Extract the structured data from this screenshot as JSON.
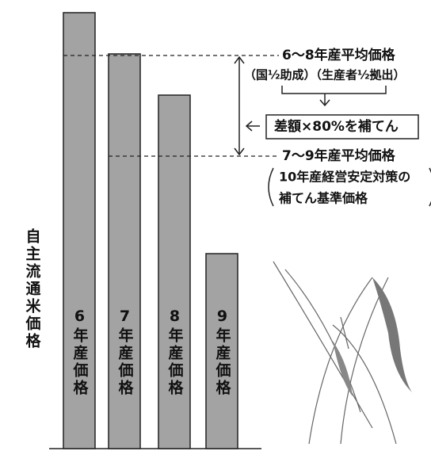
{
  "y_axis_label": "自主流通米価格",
  "bars": [
    {
      "label": "6年産価格"
    },
    {
      "label": "7年産価格"
    },
    {
      "label": "8年産価格"
    },
    {
      "label": "9年産価格"
    }
  ],
  "lines": {
    "avg_6_8": "6〜8年産平均価格",
    "avg_7_9": "7〜9年産平均価格"
  },
  "funding": "（国½助成）（生産者½拠出）",
  "compensation": "差額×80%を補てん",
  "standard_price": [
    "10年産経営安定対策の",
    "補てん基準価格"
  ]
}
